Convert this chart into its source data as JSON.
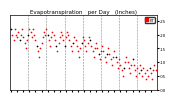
{
  "title": "Evapotranspiration   per Day   (Inches)",
  "background_color": "#ffffff",
  "plot_bg_color": "#ffffff",
  "dot_color": "#ff0000",
  "black_dot_color": "#000000",
  "dot_size": 1.5,
  "grid_color": "#888888",
  "legend_color": "#ff0000",
  "y_values": [
    0.22,
    0.2,
    0.18,
    0.22,
    0.2,
    0.19,
    0.21,
    0.18,
    0.2,
    0.22,
    0.19,
    0.17,
    0.15,
    0.18,
    0.2,
    0.22,
    0.21,
    0.19,
    0.22,
    0.2,
    0.18,
    0.16,
    0.14,
    0.12,
    0.15,
    0.17,
    0.19,
    0.21,
    0.2,
    0.22,
    0.2,
    0.18,
    0.16,
    0.19,
    0.21,
    0.2,
    0.18,
    0.16,
    0.14,
    0.17,
    0.19,
    0.21,
    0.2,
    0.18,
    0.16,
    0.19,
    0.21,
    0.2,
    0.18,
    0.16,
    0.14,
    0.17,
    0.19,
    0.18,
    0.16,
    0.14,
    0.12,
    0.15,
    0.17,
    0.19,
    0.18,
    0.16,
    0.14,
    0.17,
    0.19,
    0.18,
    0.16,
    0.14,
    0.12,
    0.15,
    0.17,
    0.15,
    0.13,
    0.11,
    0.14,
    0.16,
    0.14,
    0.12,
    0.1,
    0.13,
    0.15,
    0.13,
    0.11,
    0.09,
    0.12,
    0.14,
    0.12,
    0.1,
    0.08,
    0.11,
    0.09,
    0.07,
    0.05,
    0.08,
    0.1,
    0.12,
    0.1,
    0.08,
    0.06,
    0.09,
    0.11,
    0.09,
    0.07,
    0.05,
    0.08,
    0.06,
    0.09,
    0.07,
    0.05,
    0.08,
    0.06,
    0.04,
    0.07,
    0.05,
    0.08,
    0.06,
    0.04,
    0.07,
    0.09,
    0.07
  ],
  "black_indices": [
    0,
    7,
    14,
    21,
    30,
    37,
    44,
    51,
    58,
    65,
    72,
    79,
    86,
    93,
    100,
    107,
    114
  ],
  "vline_positions": [
    14,
    29,
    44,
    59,
    74,
    89,
    104
  ],
  "ylim": [
    0.0,
    0.27
  ],
  "yticks": [
    0.0,
    0.05,
    0.1,
    0.15,
    0.2,
    0.25
  ],
  "ytick_labels": [
    ".00",
    ".05",
    ".10",
    ".15",
    ".20",
    ".25"
  ],
  "title_fontsize": 4.0,
  "tick_fontsize": 2.8,
  "legend_label": "ET"
}
